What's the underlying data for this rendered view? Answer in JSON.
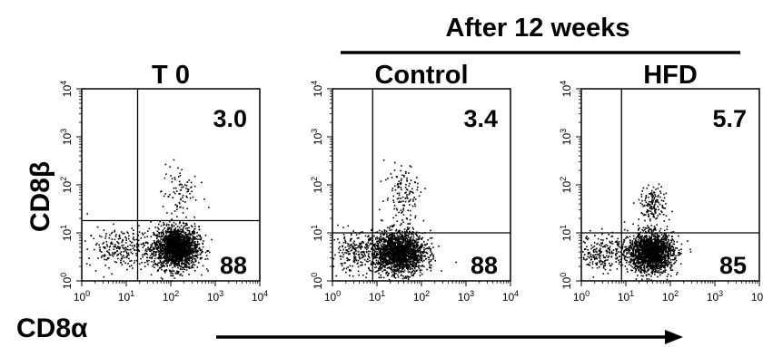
{
  "header": {
    "title": "After 12 weeks"
  },
  "axes": {
    "ylabel": "CD8β",
    "xlabel": "CD8α"
  },
  "colors": {
    "ink": "#000000",
    "background": "#ffffff"
  },
  "chart_data": [
    {
      "type": "scatter",
      "title": "T 0",
      "xlabel": "CD8α",
      "ylabel": "CD8β",
      "x_scale": "log",
      "y_scale": "log",
      "xlim": [
        1,
        10000
      ],
      "ylim": [
        1,
        10000
      ],
      "x_ticks": [
        "10^0",
        "10^1",
        "10^2",
        "10^3",
        "10^4"
      ],
      "y_ticks": [
        "10^0",
        "10^1",
        "10^2",
        "10^3",
        "10^4"
      ],
      "gate": {
        "x": 18,
        "y": 18
      },
      "quadrant_values": {
        "upper_right": "3.0",
        "lower_right": "88"
      },
      "populations": [
        {
          "x_center": 130,
          "y_center": 5,
          "x_spread_decades": 0.25,
          "y_spread_decades": 0.22,
          "share": 0.84
        },
        {
          "x_center": 8,
          "y_center": 5,
          "x_spread_decades": 0.4,
          "y_spread_decades": 0.2,
          "share": 0.12
        },
        {
          "x_center": 150,
          "y_center": 70,
          "x_spread_decades": 0.2,
          "y_spread_decades": 0.3,
          "share": 0.04
        }
      ]
    },
    {
      "type": "scatter",
      "title": "Control",
      "xlabel": "CD8α",
      "ylabel": "CD8β",
      "x_scale": "log",
      "y_scale": "log",
      "xlim": [
        1,
        10000
      ],
      "ylim": [
        1,
        10000
      ],
      "x_ticks": [
        "10^0",
        "10^1",
        "10^2",
        "10^3",
        "10^4"
      ],
      "y_ticks": [
        "10^0",
        "10^1",
        "10^2",
        "10^3",
        "10^4"
      ],
      "gate": {
        "x": 8,
        "y": 10
      },
      "quadrant_values": {
        "upper_right": "3.4",
        "lower_right": "88"
      },
      "populations": [
        {
          "x_center": 30,
          "y_center": 4,
          "x_spread_decades": 0.3,
          "y_spread_decades": 0.22,
          "share": 0.84
        },
        {
          "x_center": 3,
          "y_center": 4,
          "x_spread_decades": 0.25,
          "y_spread_decades": 0.2,
          "share": 0.1
        },
        {
          "x_center": 40,
          "y_center": 70,
          "x_spread_decades": 0.22,
          "y_spread_decades": 0.32,
          "share": 0.06
        }
      ]
    },
    {
      "type": "scatter",
      "title": "HFD",
      "xlabel": "CD8α",
      "ylabel": "CD8β",
      "x_scale": "log",
      "y_scale": "log",
      "xlim": [
        1,
        10000
      ],
      "ylim": [
        1,
        10000
      ],
      "x_ticks": [
        "10^0",
        "10^1",
        "10^2",
        "10^3",
        "10^4"
      ],
      "y_ticks": [
        "10^0",
        "10^1",
        "10^2",
        "10^3",
        "10^4"
      ],
      "gate": {
        "x": 8,
        "y": 10
      },
      "quadrant_values": {
        "upper_right": "5.7",
        "lower_right": "85"
      },
      "populations": [
        {
          "x_center": 35,
          "y_center": 4,
          "x_spread_decades": 0.25,
          "y_spread_decades": 0.2,
          "share": 0.83
        },
        {
          "x_center": 3,
          "y_center": 4,
          "x_spread_decades": 0.25,
          "y_spread_decades": 0.2,
          "share": 0.1
        },
        {
          "x_center": 40,
          "y_center": 40,
          "x_spread_decades": 0.15,
          "y_spread_decades": 0.18,
          "share": 0.07
        }
      ]
    }
  ]
}
